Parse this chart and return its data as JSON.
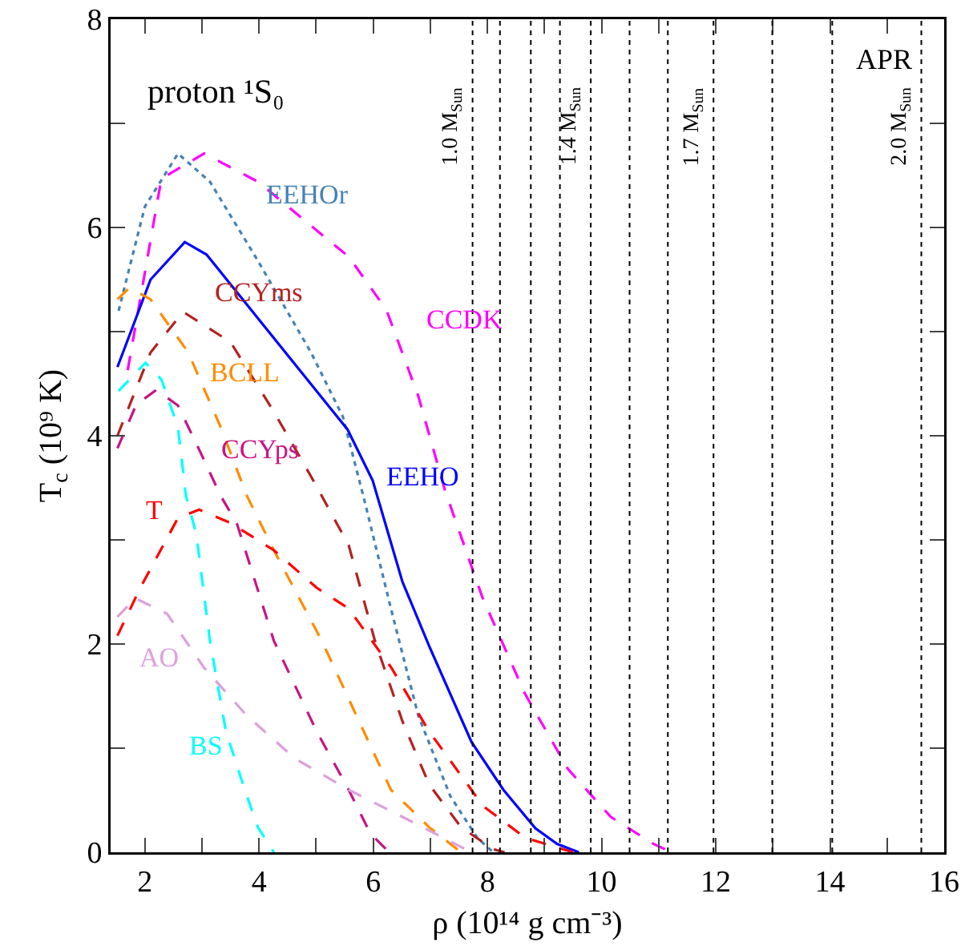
{
  "chart_data": {
    "type": "line",
    "xlabel": "ρ (10¹⁴ g cm⁻³)",
    "ylabel": "T$_{c}$ (10⁹ K)",
    "xlim": [
      1.4,
      16
    ],
    "ylim": [
      0,
      8
    ],
    "xticks": [
      {
        "value": 2,
        "label": "2"
      },
      {
        "value": 3,
        "label": null
      },
      {
        "value": 4,
        "label": "4"
      },
      {
        "value": 5,
        "label": null
      },
      {
        "value": 6,
        "label": "6"
      },
      {
        "value": 7,
        "label": null
      },
      {
        "value": 8,
        "label": "8"
      },
      {
        "value": 9,
        "label": null
      },
      {
        "value": 10,
        "label": "10"
      },
      {
        "value": 11,
        "label": null
      },
      {
        "value": 12,
        "label": "12"
      },
      {
        "value": 13,
        "label": null
      },
      {
        "value": 14,
        "label": "14"
      },
      {
        "value": 15,
        "label": null
      },
      {
        "value": 16,
        "label": "16"
      }
    ],
    "yticks": [
      0,
      {
        "value": 1,
        "label": null
      },
      2,
      {
        "value": 3,
        "label": null
      },
      4,
      {
        "value": 5,
        "label": null
      },
      6,
      {
        "value": 7,
        "label": null
      },
      8
    ],
    "grid": false,
    "legend": false,
    "marker": "none",
    "annotations": [
      "proton ¹S₀",
      "APR"
    ],
    "ref_lines": [
      {
        "axis": "x",
        "value": 7.74,
        "label": "1.0 M$_{Sun}$",
        "color": "#000000",
        "line_style": "dotted"
      },
      {
        "axis": "x",
        "value": 8.22,
        "label": null,
        "color": "#000000",
        "line_style": "dotted"
      },
      {
        "axis": "x",
        "value": 8.76,
        "label": null,
        "color": "#000000",
        "line_style": "dotted"
      },
      {
        "axis": "x",
        "value": 9.27,
        "label": null,
        "color": "#000000",
        "line_style": "dotted"
      },
      {
        "axis": "x",
        "value": 9.81,
        "label": "1.4 M$_{Sun}$",
        "color": "#000000",
        "line_style": "dotted"
      },
      {
        "axis": "x",
        "value": 10.49,
        "label": null,
        "color": "#000000",
        "line_style": "dotted"
      },
      {
        "axis": "x",
        "value": 11.16,
        "label": null,
        "color": "#000000",
        "line_style": "dotted"
      },
      {
        "axis": "x",
        "value": 11.96,
        "label": "1.7 M$_{Sun}$",
        "color": "#000000",
        "line_style": "dotted"
      },
      {
        "axis": "x",
        "value": 12.99,
        "label": null,
        "color": "#000000",
        "line_style": "dotted"
      },
      {
        "axis": "x",
        "value": 14.04,
        "label": null,
        "color": "#000000",
        "line_style": "dotted"
      },
      {
        "axis": "x",
        "value": 15.6,
        "label": "2.0 M$_{Sun}$",
        "color": "#000000",
        "line_style": "dotted"
      }
    ],
    "series": [
      {
        "name": "EEHOr",
        "color": "#4682b4",
        "line_style": "dotted",
        "x": [
          1.54,
          2.0,
          2.58,
          3.14,
          3.98,
          4.91,
          5.47,
          5.85,
          6.31,
          6.79,
          7.35,
          7.82,
          8.1
        ],
        "values": [
          5.2,
          6.2,
          6.71,
          6.44,
          5.68,
          4.8,
          4.18,
          3.37,
          2.34,
          1.31,
          0.54,
          0.14,
          0
        ]
      },
      {
        "name": "CCDK",
        "color": "#ff00ff",
        "line_style": "dashed",
        "x": [
          1.7,
          2.29,
          3.04,
          3.98,
          5.1,
          5.57,
          6.23,
          6.79,
          7.26,
          7.91,
          8.66,
          9.41,
          10.16,
          10.91,
          11.23
        ],
        "values": [
          4.63,
          6.47,
          6.71,
          6.44,
          5.93,
          5.72,
          5.21,
          4.38,
          3.47,
          2.45,
          1.52,
          0.8,
          0.34,
          0.08,
          0
        ]
      },
      {
        "name": "EEHO",
        "color": "#0000ff",
        "line_style": "solid",
        "x": [
          1.52,
          2.1,
          2.7,
          3.08,
          5.55,
          5.99,
          6.51,
          6.98,
          7.72,
          8.28,
          8.84,
          9.22,
          9.6
        ],
        "values": [
          4.66,
          5.5,
          5.86,
          5.74,
          4.06,
          3.57,
          2.6,
          1.98,
          1.06,
          0.6,
          0.23,
          0.08,
          0
        ]
      },
      {
        "name": "CCYms",
        "color": "#b22222",
        "line_style": "dashed",
        "x": [
          1.52,
          2.1,
          2.67,
          3.5,
          4.26,
          4.91,
          5.57,
          6.03,
          6.51,
          6.98,
          7.54,
          8.1,
          8.3
        ],
        "values": [
          4.0,
          4.8,
          5.19,
          4.9,
          4.23,
          3.61,
          2.95,
          2.03,
          1.26,
          0.65,
          0.24,
          0.03,
          0
        ]
      },
      {
        "name": "BCLL",
        "color": "#ff8c00",
        "line_style": "dashed",
        "x": [
          1.52,
          1.73,
          2.1,
          2.76,
          3.33,
          3.79,
          4.26,
          5.1,
          5.75,
          6.31,
          6.98,
          7.54
        ],
        "values": [
          5.31,
          5.42,
          5.31,
          4.8,
          4.08,
          3.42,
          2.9,
          2.03,
          1.26,
          0.6,
          0.24,
          0
        ]
      },
      {
        "name": "CCYps",
        "color": "#c71585",
        "line_style": "dashed",
        "x": [
          1.52,
          1.85,
          2.2,
          2.58,
          2.94,
          3.33,
          3.61,
          4.26,
          5.01,
          5.57,
          5.95,
          6.28
        ],
        "values": [
          3.88,
          4.3,
          4.44,
          4.29,
          3.88,
          3.42,
          3.16,
          2.03,
          1.16,
          0.6,
          0.18,
          0
        ]
      },
      {
        "name": "T",
        "color": "#ff0000",
        "line_style": "dashed",
        "x": [
          1.52,
          1.92,
          2.58,
          2.95,
          3.51,
          4.26,
          5.01,
          5.57,
          6.32,
          6.98,
          7.72,
          7.91,
          8.66,
          9.5
        ],
        "values": [
          2.08,
          2.54,
          3.21,
          3.29,
          3.16,
          2.9,
          2.54,
          2.34,
          1.77,
          1.16,
          0.6,
          0.45,
          0.14,
          0
        ]
      },
      {
        "name": "AO",
        "color": "#dda0dd",
        "line_style": "dashed",
        "x": [
          1.52,
          1.83,
          2.39,
          3.04,
          3.79,
          4.63,
          5.57,
          6.51,
          7.26,
          7.72
        ],
        "values": [
          2.26,
          2.44,
          2.29,
          1.77,
          1.31,
          0.9,
          0.6,
          0.34,
          0.13,
          0
        ]
      },
      {
        "name": "BS",
        "color": "#00ffff",
        "line_style": "dashed",
        "x": [
          1.54,
          2.01,
          2.29,
          2.58,
          2.72,
          2.9,
          3.14,
          3.42,
          3.75,
          3.98,
          4.26
        ],
        "values": [
          4.43,
          4.7,
          4.54,
          4.08,
          3.42,
          3.06,
          2.03,
          1.16,
          0.6,
          0.24,
          0
        ]
      }
    ]
  }
}
